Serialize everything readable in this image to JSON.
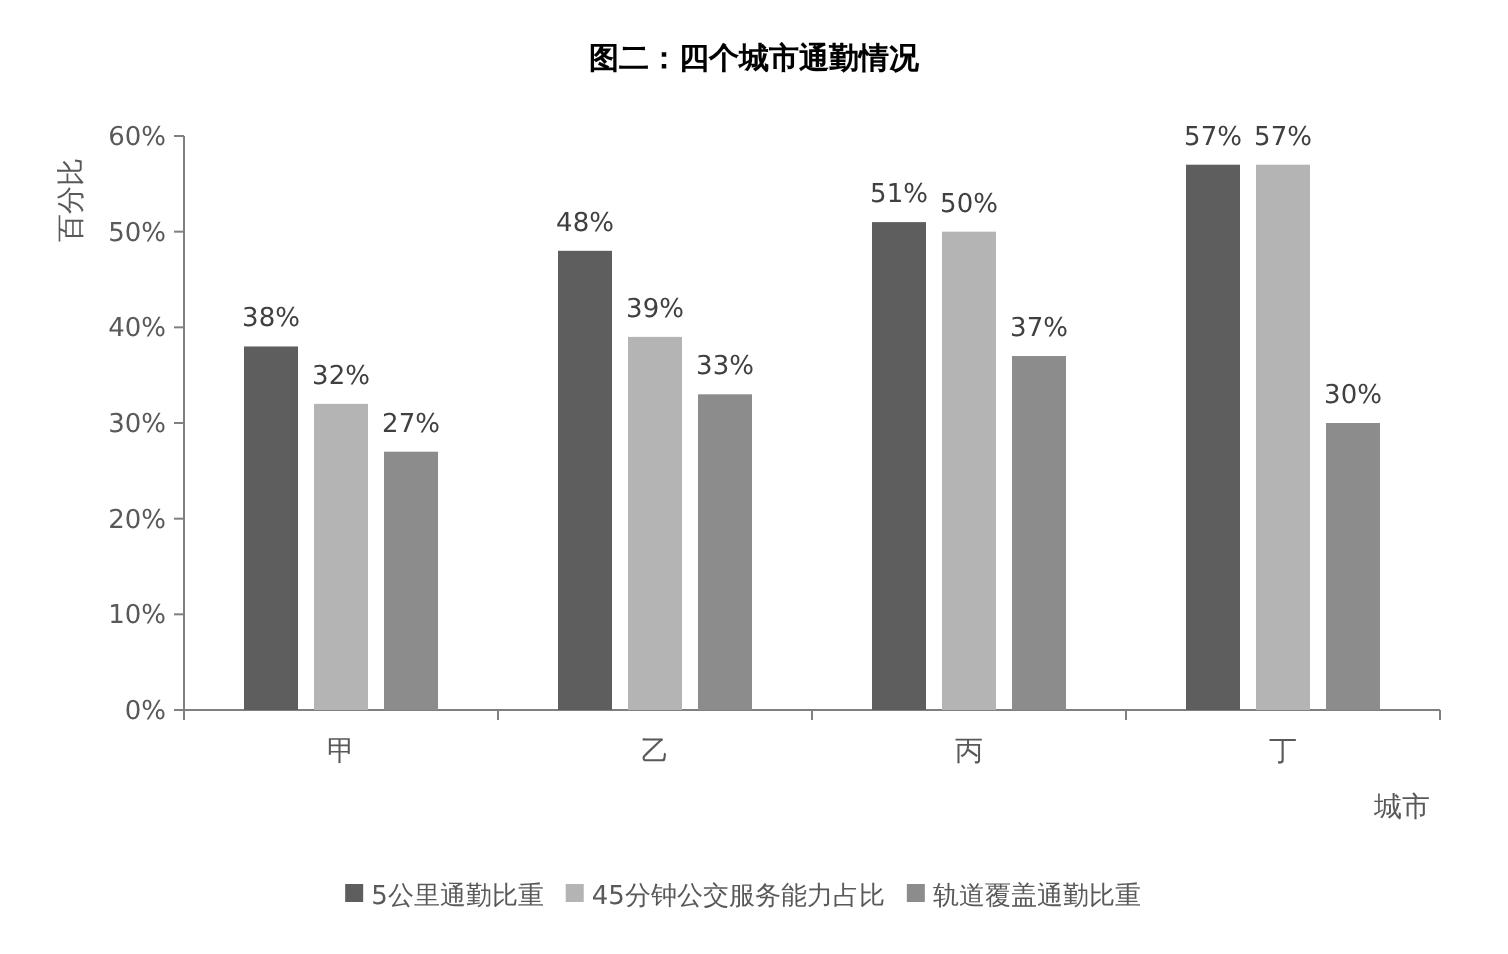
{
  "chart_data": {
    "type": "bar",
    "title": "图二：四个城市通勤情况",
    "xlabel": "城市",
    "ylabel": "百分比",
    "categories": [
      "甲",
      "乙",
      "丙",
      "丁"
    ],
    "series": [
      {
        "name": "5公里通勤比重",
        "color": "#5e5e5e",
        "values": [
          38,
          48,
          51,
          57
        ],
        "value_labels": [
          "38%",
          "48%",
          "51%",
          "57%"
        ]
      },
      {
        "name": "45分钟公交服务能力占比",
        "color": "#b4b4b4",
        "values": [
          32,
          39,
          50,
          57
        ],
        "value_labels": [
          "32%",
          "39%",
          "50%",
          "57%"
        ]
      },
      {
        "name": "轨道覆盖通勤比重",
        "color": "#8c8c8c",
        "values": [
          27,
          33,
          37,
          30
        ],
        "value_labels": [
          "27%",
          "33%",
          "37%",
          "30%"
        ]
      }
    ],
    "ylim": [
      0,
      60
    ],
    "yticks": [
      {
        "value": 0,
        "label": "0%"
      },
      {
        "value": 10,
        "label": "10%"
      },
      {
        "value": 20,
        "label": "20%"
      },
      {
        "value": 30,
        "label": "30%"
      },
      {
        "value": 40,
        "label": "40%"
      },
      {
        "value": 50,
        "label": "50%"
      },
      {
        "value": 60,
        "label": "60%"
      }
    ],
    "grid": false,
    "legend": "bottom"
  }
}
